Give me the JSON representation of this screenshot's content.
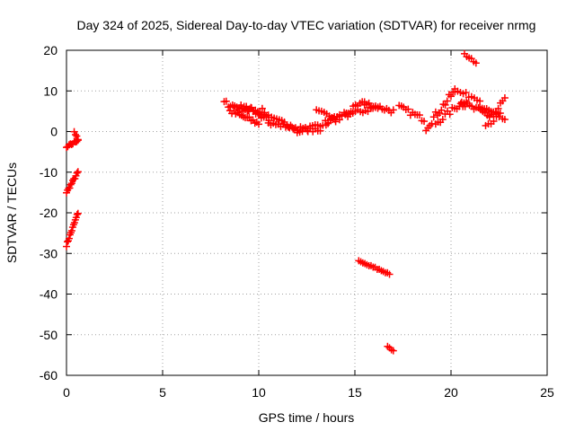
{
  "chart_data": {
    "type": "scatter",
    "title": "Day 324 of 2025, Sidereal Day-to-day VTEC variation (SDTVAR) for receiver nrmg",
    "xlabel": "GPS time / hours",
    "ylabel": "SDTVAR / TECUs",
    "xlim": [
      0,
      25
    ],
    "ylim": [
      -60,
      20
    ],
    "xticks": [
      0,
      5,
      10,
      15,
      20,
      25
    ],
    "yticks": [
      -60,
      -50,
      -40,
      -30,
      -20,
      -10,
      0,
      10,
      20
    ],
    "grid": true,
    "legend": "none",
    "series": [
      {
        "name": "SDTVAR",
        "color": "#ff0000",
        "marker": "plus",
        "tracks": [
          {
            "x0": 0.0,
            "y0": -28,
            "x1": 0.6,
            "y1": -20,
            "n": 14,
            "spread": 0.6
          },
          {
            "x0": 0.0,
            "y0": -15,
            "x1": 0.6,
            "y1": -10,
            "n": 12,
            "spread": 0.6
          },
          {
            "x0": 0.0,
            "y0": -4,
            "x1": 0.6,
            "y1": -2,
            "n": 10,
            "spread": 0.7
          },
          {
            "x0": 0.4,
            "y0": 0,
            "x1": 0.6,
            "y1": -2,
            "n": 4,
            "spread": 0.5
          },
          {
            "x0": 8.2,
            "y0": 7,
            "x1": 10.5,
            "y1": 4,
            "n": 22,
            "spread": 1.6
          },
          {
            "x0": 8.5,
            "y0": 5,
            "x1": 10.0,
            "y1": 2,
            "n": 16,
            "spread": 1.3
          },
          {
            "x0": 9.0,
            "y0": 6,
            "x1": 10.3,
            "y1": 5,
            "n": 12,
            "spread": 1.2
          },
          {
            "x0": 10.0,
            "y0": 4,
            "x1": 12.0,
            "y1": 1,
            "n": 16,
            "spread": 1.3
          },
          {
            "x0": 10.5,
            "y0": 2,
            "x1": 13.2,
            "y1": 0,
            "n": 22,
            "spread": 1.0
          },
          {
            "x0": 12.0,
            "y0": 0,
            "x1": 14.0,
            "y1": 3,
            "n": 16,
            "spread": 1.2
          },
          {
            "x0": 13.0,
            "y0": 5,
            "x1": 14.2,
            "y1": 3,
            "n": 10,
            "spread": 0.9
          },
          {
            "x0": 13.5,
            "y0": 2,
            "x1": 15.5,
            "y1": 7,
            "n": 18,
            "spread": 1.5
          },
          {
            "x0": 14.5,
            "y0": 4,
            "x1": 16.2,
            "y1": 6,
            "n": 14,
            "spread": 1.3
          },
          {
            "x0": 15.5,
            "y0": 7,
            "x1": 17.0,
            "y1": 5,
            "n": 14,
            "spread": 1.2
          },
          {
            "x0": 17.3,
            "y0": 6,
            "x1": 18.6,
            "y1": 3,
            "n": 12,
            "spread": 1.3
          },
          {
            "x0": 18.7,
            "y0": 1,
            "x1": 20.2,
            "y1": 10,
            "n": 16,
            "spread": 1.8
          },
          {
            "x0": 19.2,
            "y0": 2,
            "x1": 20.8,
            "y1": 8,
            "n": 14,
            "spread": 1.5
          },
          {
            "x0": 20.2,
            "y0": 10,
            "x1": 21.5,
            "y1": 8,
            "n": 10,
            "spread": 1.0
          },
          {
            "x0": 20.5,
            "y0": 7,
            "x1": 22.0,
            "y1": 4,
            "n": 14,
            "spread": 1.5
          },
          {
            "x0": 21.5,
            "y0": 6,
            "x1": 22.8,
            "y1": 3,
            "n": 12,
            "spread": 2.0
          },
          {
            "x0": 22.0,
            "y0": 3,
            "x1": 22.8,
            "y1": 8,
            "n": 8,
            "spread": 1.2
          },
          {
            "x0": 21.8,
            "y0": 1,
            "x1": 22.5,
            "y1": 4,
            "n": 6,
            "spread": 1.0
          },
          {
            "x0": 15.2,
            "y0": -32,
            "x1": 16.8,
            "y1": -35,
            "n": 16,
            "spread": 0.5
          },
          {
            "x0": 16.7,
            "y0": -53,
            "x1": 17.0,
            "y1": -54,
            "n": 4,
            "spread": 0.3
          },
          {
            "x0": 20.7,
            "y0": 19,
            "x1": 21.3,
            "y1": 17,
            "n": 6,
            "spread": 0.4
          }
        ]
      }
    ]
  }
}
